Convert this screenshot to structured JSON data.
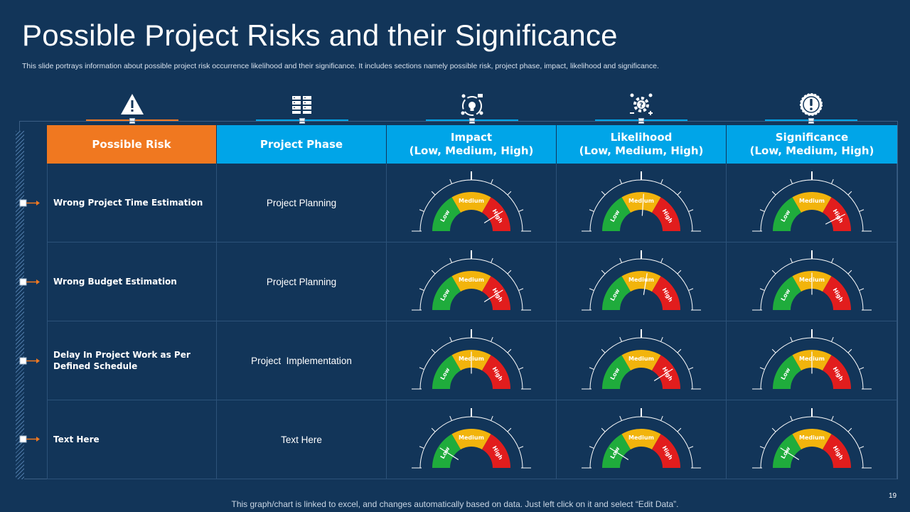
{
  "slide": {
    "title": "Possible Project Risks and their Significance",
    "subtitle": "This slide portrays information about possible project risk occurrence likelihood and their significance. It includes sections namely possible risk, project phase, impact, likelihood and significance.",
    "footer": "This graph/chart is linked to excel, and changes automatically based on data. Just left click on it and select “Edit Data”.",
    "page_number": "19"
  },
  "icons": [
    "warning-icon",
    "server-rack-icon",
    "team-idea-icon",
    "gear-question-icon",
    "alert-badge-icon"
  ],
  "colors": {
    "background": "#123559",
    "orange": "#f07820",
    "blue": "#00a5e8",
    "low": "#1fac3c",
    "medium": "#f2b40c",
    "high": "#e21d1d"
  },
  "headers": {
    "risk": "Possible Risk",
    "phase": "Project Phase",
    "impact_l1": "Impact",
    "impact_l2": "(Low, Medium, High)",
    "likelihood_l1": "Likelihood",
    "likelihood_l2": "(Low, Medium, High)",
    "significance_l1": "Significance",
    "significance_l2": "(Low, Medium, High)"
  },
  "gauge_labels": {
    "low": "Low",
    "medium": "Medium",
    "high": "High"
  },
  "rows": [
    {
      "risk": "Wrong Project Time Estimation",
      "phase": "Project Planning",
      "impact": 0.82,
      "likelihood": 0.52,
      "significance": 0.85
    },
    {
      "risk": "Wrong Budget Estimation",
      "phase": "Project Planning",
      "impact": 0.82,
      "likelihood": 0.55,
      "significance": 0.5
    },
    {
      "risk": "Delay In Project Work as Per Defined Schedule",
      "phase": "Project  Implementation",
      "impact": 0.5,
      "likelihood": 0.82,
      "significance": 0.5
    },
    {
      "risk": "Text Here",
      "phase": "Text Here",
      "impact": 0.18,
      "likelihood": 0.18,
      "significance": 0.18
    }
  ]
}
